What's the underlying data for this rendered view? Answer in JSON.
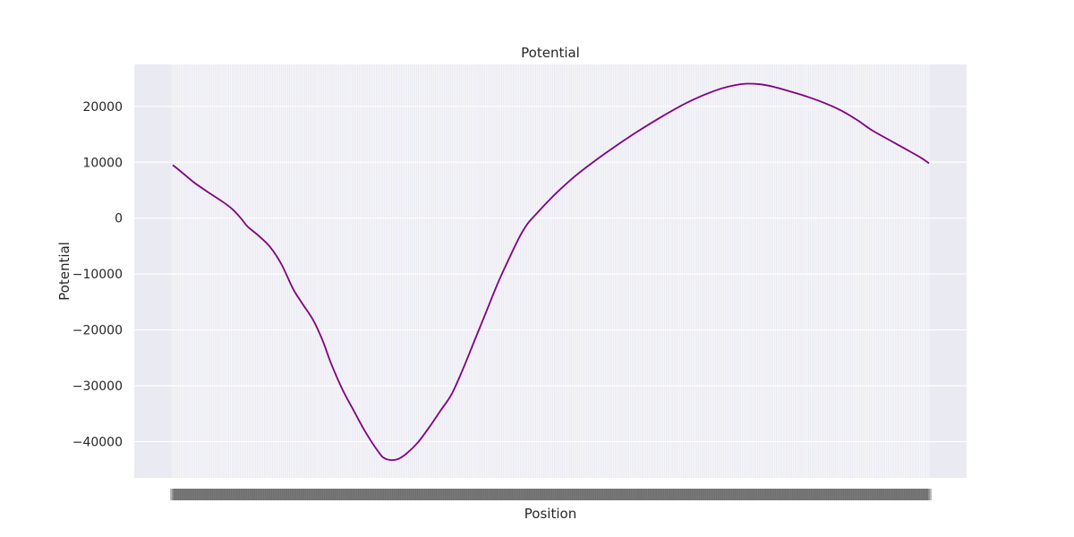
{
  "chart_data": {
    "type": "line",
    "title": "Potential",
    "xlabel": "Position",
    "ylabel": "Potential",
    "ylim": [
      -46500,
      27500
    ],
    "yticks": [
      20000,
      10000,
      0,
      -10000,
      -20000,
      -30000,
      -40000
    ],
    "ytick_labels": [
      "20000",
      "10000",
      "0",
      "−10000",
      "−20000",
      "−30000",
      "−40000"
    ],
    "x_tick_count": 400,
    "grid": true,
    "series": [
      {
        "color": "#800080",
        "points": [
          [
            0,
            9500
          ],
          [
            8,
            8200
          ],
          [
            18,
            6500
          ],
          [
            30,
            4800
          ],
          [
            42,
            3200
          ],
          [
            52,
            1700
          ],
          [
            60,
            0
          ],
          [
            66,
            -1500
          ],
          [
            76,
            -3200
          ],
          [
            86,
            -5200
          ],
          [
            96,
            -8300
          ],
          [
            106,
            -12600
          ],
          [
            114,
            -15200
          ],
          [
            124,
            -18300
          ],
          [
            132,
            -21800
          ],
          [
            140,
            -26200
          ],
          [
            150,
            -30800
          ],
          [
            160,
            -34600
          ],
          [
            170,
            -38300
          ],
          [
            182,
            -42000
          ],
          [
            187,
            -43000
          ],
          [
            193,
            -43300
          ],
          [
            199,
            -43100
          ],
          [
            207,
            -42000
          ],
          [
            216,
            -40200
          ],
          [
            226,
            -37500
          ],
          [
            236,
            -34500
          ],
          [
            246,
            -31500
          ],
          [
            256,
            -27000
          ],
          [
            266,
            -22000
          ],
          [
            276,
            -17000
          ],
          [
            286,
            -12000
          ],
          [
            296,
            -7500
          ],
          [
            306,
            -3300
          ],
          [
            313,
            -1000
          ],
          [
            320,
            600
          ],
          [
            330,
            2800
          ],
          [
            342,
            5200
          ],
          [
            356,
            7700
          ],
          [
            372,
            10200
          ],
          [
            390,
            12800
          ],
          [
            410,
            15500
          ],
          [
            430,
            18000
          ],
          [
            450,
            20300
          ],
          [
            468,
            22000
          ],
          [
            484,
            23200
          ],
          [
            496,
            23800
          ],
          [
            506,
            24050
          ],
          [
            518,
            23950
          ],
          [
            530,
            23500
          ],
          [
            544,
            22700
          ],
          [
            560,
            21700
          ],
          [
            576,
            20500
          ],
          [
            590,
            19200
          ],
          [
            604,
            17500
          ],
          [
            616,
            15800
          ],
          [
            630,
            14200
          ],
          [
            646,
            12400
          ],
          [
            660,
            10800
          ],
          [
            667,
            9800
          ]
        ]
      }
    ]
  }
}
